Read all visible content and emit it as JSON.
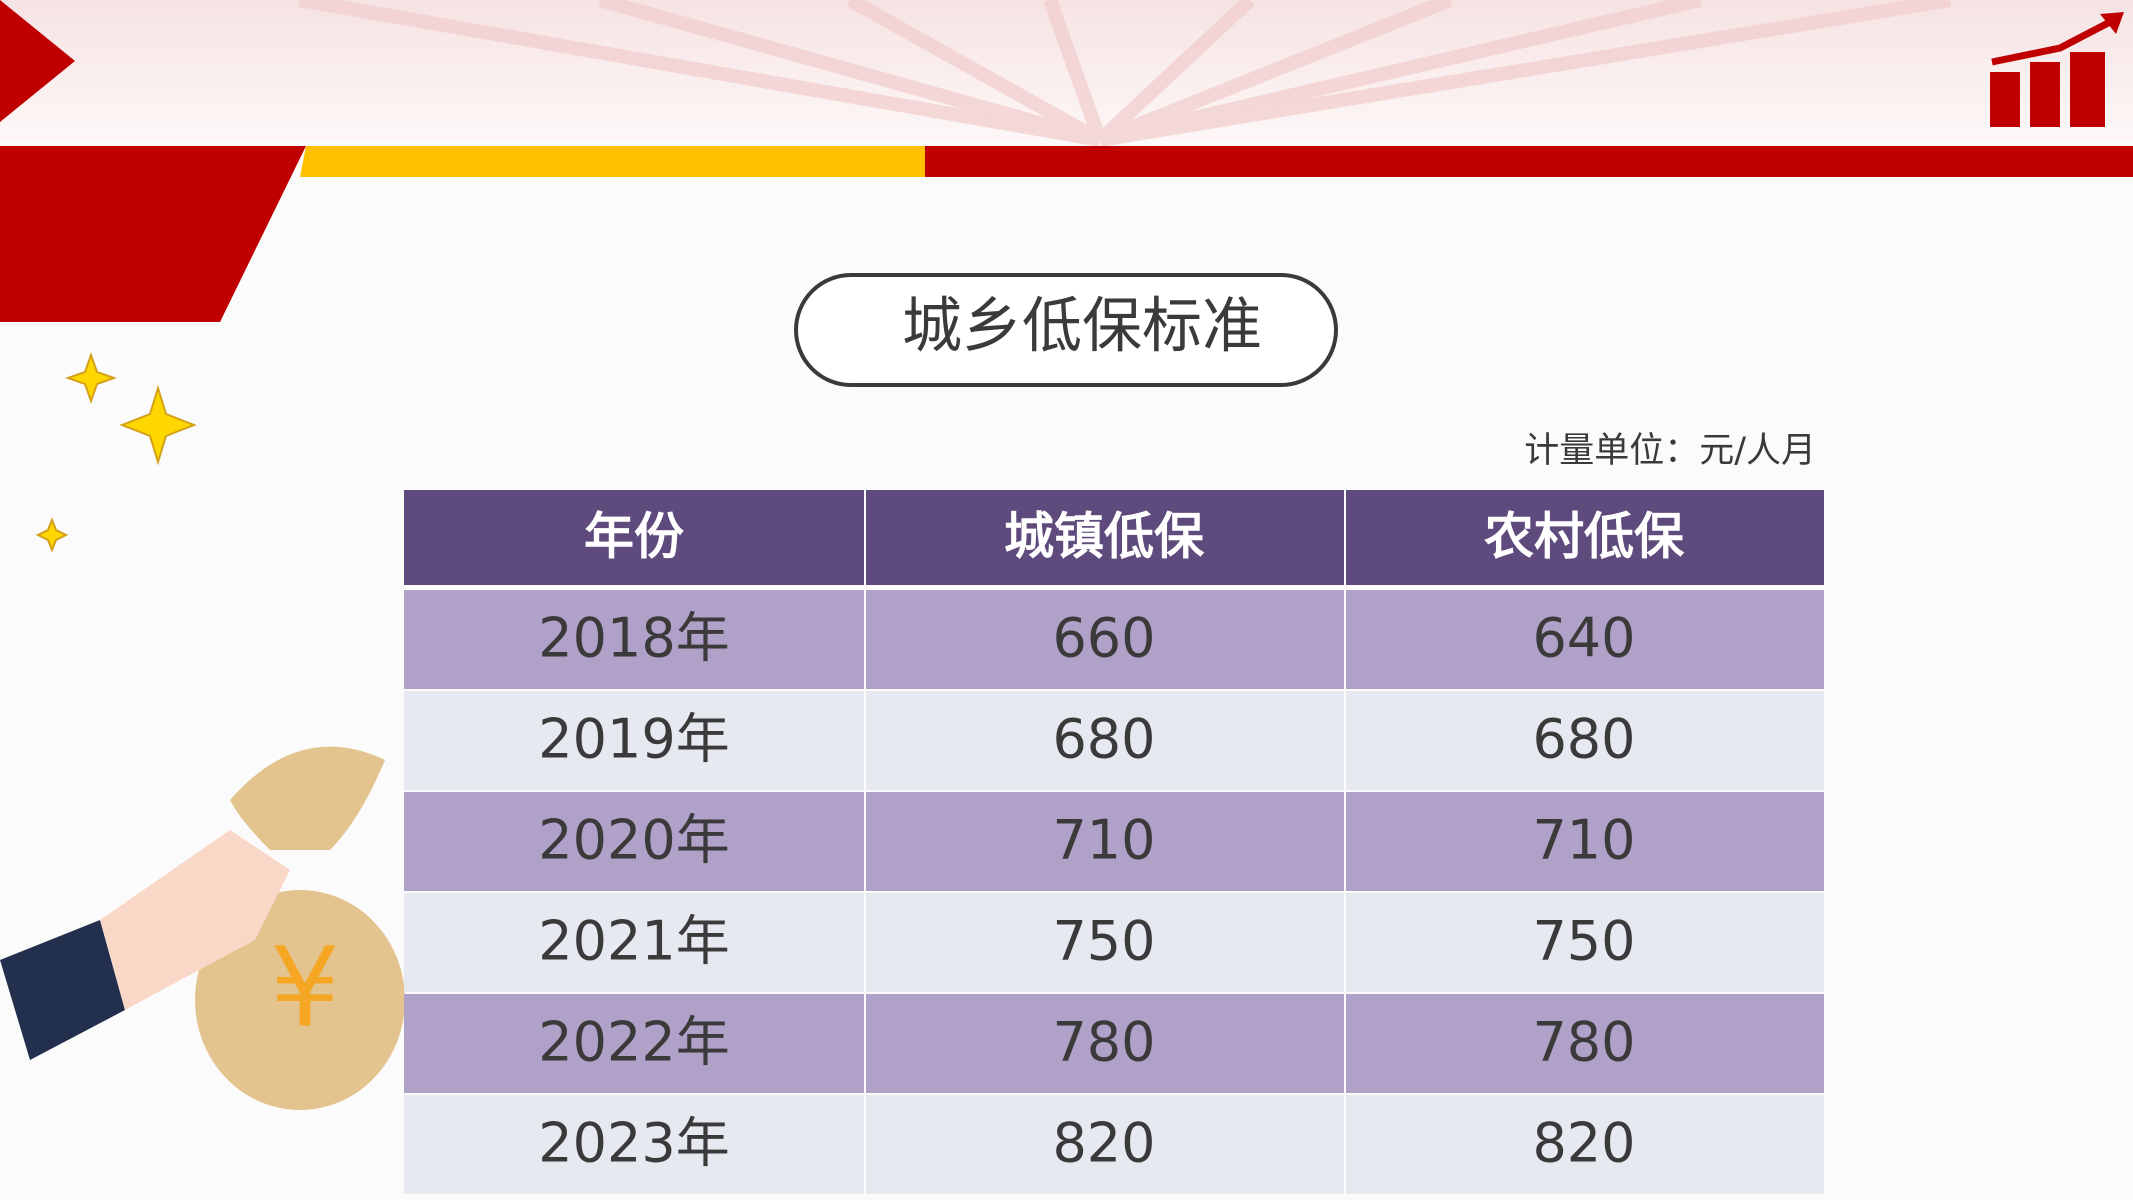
{
  "header": {
    "title": "城乡低保标准",
    "unit": "计量单位：元/人月"
  },
  "table": {
    "columns": [
      "年份",
      "城镇低保",
      "农村低保"
    ],
    "rows": [
      [
        "2018年",
        660,
        640
      ],
      [
        "2019年",
        680,
        680
      ],
      [
        "2020年",
        710,
        710
      ],
      [
        "2021年",
        750,
        750
      ],
      [
        "2022年",
        780,
        780
      ],
      [
        "2023年",
        820,
        820
      ]
    ]
  }
}
